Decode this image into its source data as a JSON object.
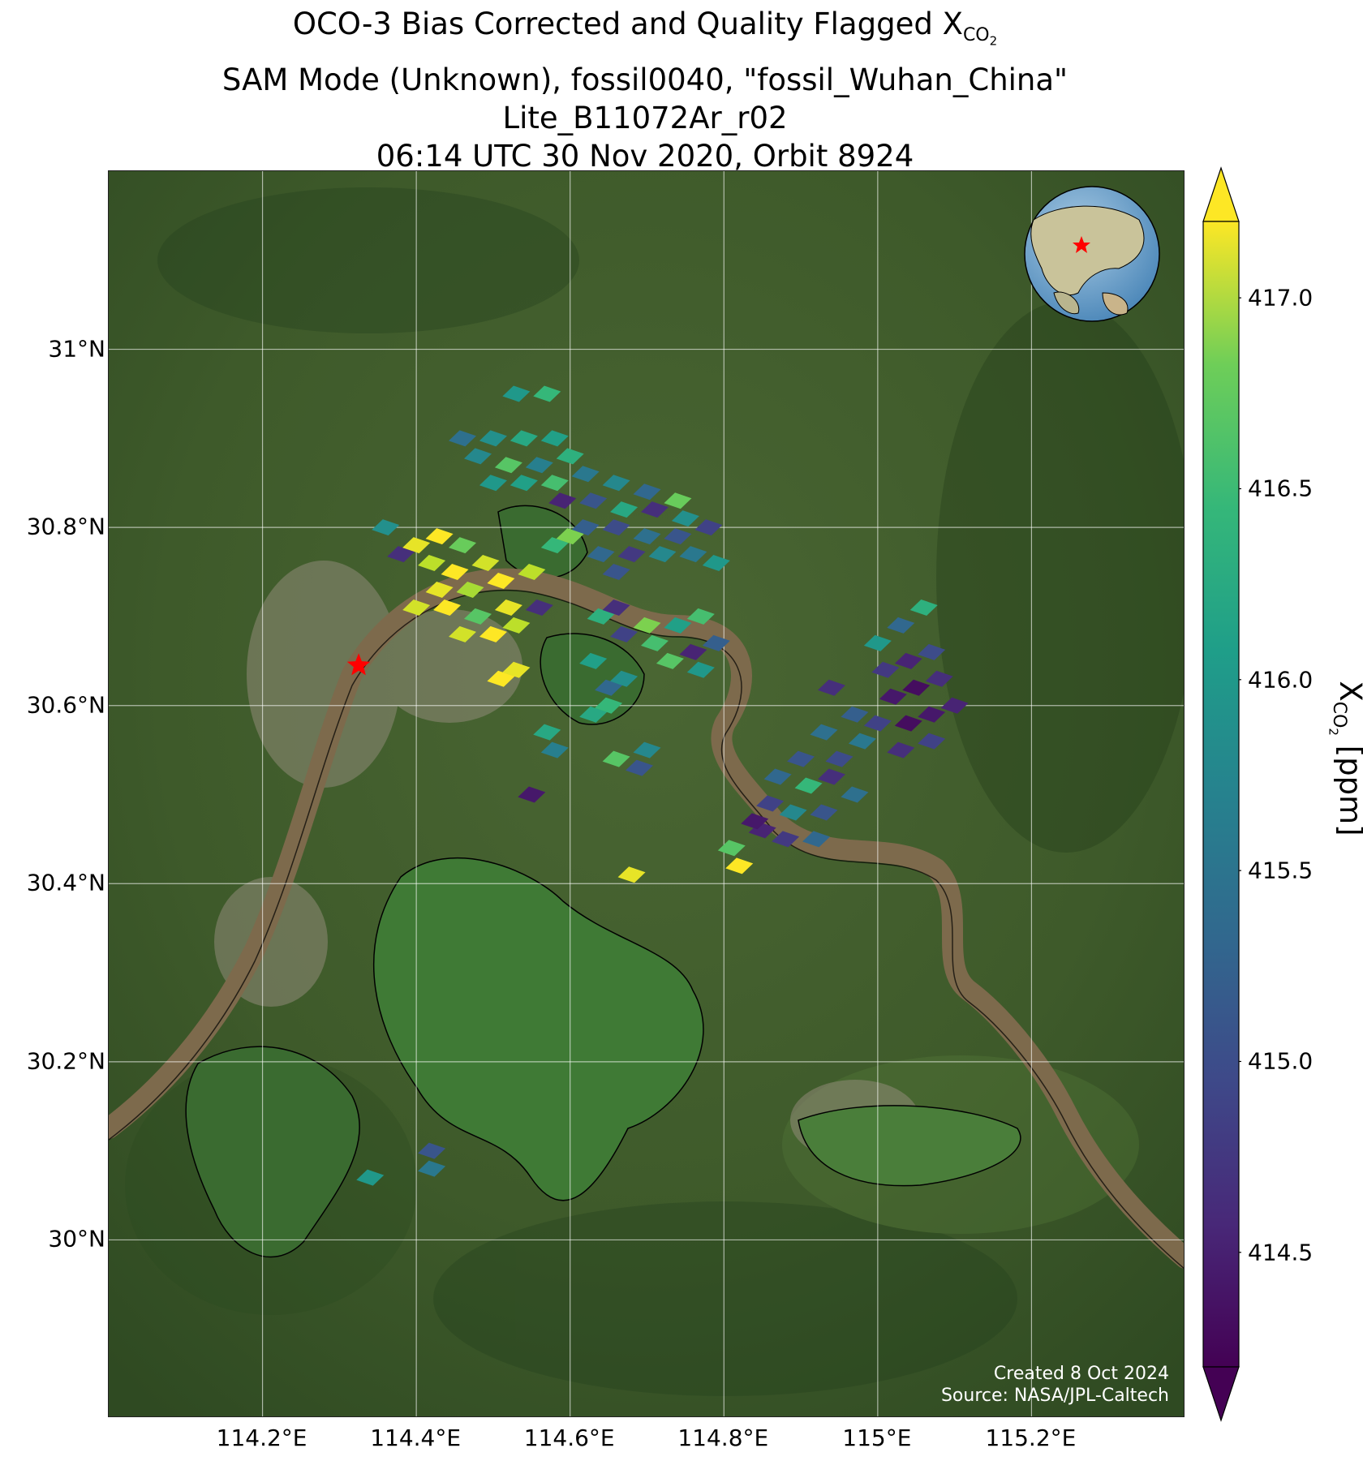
{
  "title": {
    "line1_prefix": "OCO-3 Bias Corrected and Quality Flagged X",
    "line1_sub": "CO",
    "line1_subsub": "2",
    "line2": "SAM Mode (Unknown), fossil0040, \"fossil_Wuhan_China\"",
    "line3": "Lite_B11072Ar_r02",
    "line4": "06:14 UTC 30 Nov 2020, Orbit 8924"
  },
  "map": {
    "lon_range": [
      114.0,
      115.4
    ],
    "lat_range": [
      29.8,
      31.2
    ],
    "lat_ticks": [
      {
        "value": 31.0,
        "label": "31°N"
      },
      {
        "value": 30.8,
        "label": "30.8°N"
      },
      {
        "value": 30.6,
        "label": "30.6°N"
      },
      {
        "value": 30.4,
        "label": "30.4°N"
      },
      {
        "value": 30.2,
        "label": "30.2°N"
      },
      {
        "value": 30.0,
        "label": "30°N"
      }
    ],
    "lon_ticks": [
      {
        "value": 114.2,
        "label": "114.2°E"
      },
      {
        "value": 114.4,
        "label": "114.4°E"
      },
      {
        "value": 114.6,
        "label": "114.6°E"
      },
      {
        "value": 114.8,
        "label": "114.8°E"
      },
      {
        "value": 115.0,
        "label": "115°E"
      },
      {
        "value": 115.2,
        "label": "115.2°E"
      }
    ],
    "target_marker": {
      "lon": 114.325,
      "lat": 30.645,
      "color": "#ff0000"
    },
    "background_colors": {
      "land": "#3e5a2a",
      "river": "#7d6a4c",
      "lake": "#3f7a35"
    },
    "credits": [
      "Created 8 Oct 2024",
      "Source: NASA/JPL-Caltech"
    ]
  },
  "colorbar": {
    "colormap": "viridis",
    "range": [
      414.2,
      417.2
    ],
    "ticks": [
      {
        "value": 417.0,
        "label": "417.0"
      },
      {
        "value": 416.5,
        "label": "416.5"
      },
      {
        "value": 416.0,
        "label": "416.0"
      },
      {
        "value": 415.5,
        "label": "415.5"
      },
      {
        "value": 415.0,
        "label": "415.0"
      },
      {
        "value": 414.5,
        "label": "414.5"
      }
    ],
    "label_prefix": "X",
    "label_sub": "CO",
    "label_subsub": "2",
    "label_suffix": " [ppm]",
    "extend": "both"
  },
  "chart_data": {
    "type": "scatter",
    "xlabel": "",
    "ylabel": "",
    "xlim": [
      114.0,
      115.4
    ],
    "ylim": [
      29.8,
      31.2
    ],
    "series": [
      {
        "points": [
          {
            "lon": 114.53,
            "lat": 30.95,
            "v": 415.8
          },
          {
            "lon": 114.57,
            "lat": 30.95,
            "v": 416.2
          },
          {
            "lon": 114.46,
            "lat": 30.9,
            "v": 415.3
          },
          {
            "lon": 114.5,
            "lat": 30.9,
            "v": 415.7
          },
          {
            "lon": 114.54,
            "lat": 30.9,
            "v": 416.0
          },
          {
            "lon": 114.58,
            "lat": 30.9,
            "v": 415.9
          },
          {
            "lon": 114.48,
            "lat": 30.88,
            "v": 415.6
          },
          {
            "lon": 114.52,
            "lat": 30.87,
            "v": 416.4
          },
          {
            "lon": 114.56,
            "lat": 30.87,
            "v": 415.5
          },
          {
            "lon": 114.6,
            "lat": 30.88,
            "v": 416.1
          },
          {
            "lon": 114.5,
            "lat": 30.85,
            "v": 415.8
          },
          {
            "lon": 114.54,
            "lat": 30.85,
            "v": 415.9
          },
          {
            "lon": 114.58,
            "lat": 30.85,
            "v": 416.3
          },
          {
            "lon": 114.62,
            "lat": 30.86,
            "v": 415.4
          },
          {
            "lon": 114.66,
            "lat": 30.85,
            "v": 415.6
          },
          {
            "lon": 114.7,
            "lat": 30.84,
            "v": 415.2
          },
          {
            "lon": 114.74,
            "lat": 30.83,
            "v": 416.5
          },
          {
            "lon": 114.59,
            "lat": 30.83,
            "v": 414.5
          },
          {
            "lon": 114.63,
            "lat": 30.83,
            "v": 415.0
          },
          {
            "lon": 114.67,
            "lat": 30.82,
            "v": 416.0
          },
          {
            "lon": 114.71,
            "lat": 30.82,
            "v": 414.6
          },
          {
            "lon": 114.75,
            "lat": 30.81,
            "v": 415.7
          },
          {
            "lon": 114.62,
            "lat": 30.8,
            "v": 415.1
          },
          {
            "lon": 114.66,
            "lat": 30.8,
            "v": 414.9
          },
          {
            "lon": 114.7,
            "lat": 30.79,
            "v": 415.3
          },
          {
            "lon": 114.74,
            "lat": 30.79,
            "v": 415.0
          },
          {
            "lon": 114.78,
            "lat": 30.8,
            "v": 414.8
          },
          {
            "lon": 114.64,
            "lat": 30.77,
            "v": 415.2
          },
          {
            "lon": 114.68,
            "lat": 30.77,
            "v": 414.7
          },
          {
            "lon": 114.72,
            "lat": 30.77,
            "v": 415.6
          },
          {
            "lon": 114.76,
            "lat": 30.77,
            "v": 415.4
          },
          {
            "lon": 114.66,
            "lat": 30.75,
            "v": 415.0
          },
          {
            "lon": 114.79,
            "lat": 30.76,
            "v": 415.8
          },
          {
            "lon": 114.36,
            "lat": 30.8,
            "v": 415.7
          },
          {
            "lon": 114.38,
            "lat": 30.77,
            "v": 414.6
          },
          {
            "lon": 114.4,
            "lat": 30.78,
            "v": 417.1
          },
          {
            "lon": 114.43,
            "lat": 30.79,
            "v": 417.2
          },
          {
            "lon": 114.46,
            "lat": 30.78,
            "v": 416.5
          },
          {
            "lon": 114.42,
            "lat": 30.76,
            "v": 416.9
          },
          {
            "lon": 114.45,
            "lat": 30.75,
            "v": 417.2
          },
          {
            "lon": 114.49,
            "lat": 30.76,
            "v": 417.0
          },
          {
            "lon": 114.43,
            "lat": 30.73,
            "v": 417.1
          },
          {
            "lon": 114.47,
            "lat": 30.73,
            "v": 416.8
          },
          {
            "lon": 114.51,
            "lat": 30.74,
            "v": 417.2
          },
          {
            "lon": 114.55,
            "lat": 30.75,
            "v": 416.9
          },
          {
            "lon": 114.4,
            "lat": 30.71,
            "v": 417.0
          },
          {
            "lon": 114.44,
            "lat": 30.71,
            "v": 417.2
          },
          {
            "lon": 114.48,
            "lat": 30.7,
            "v": 416.4
          },
          {
            "lon": 114.52,
            "lat": 30.71,
            "v": 417.1
          },
          {
            "lon": 114.56,
            "lat": 30.71,
            "v": 414.6
          },
          {
            "lon": 114.46,
            "lat": 30.68,
            "v": 417.0
          },
          {
            "lon": 114.5,
            "lat": 30.68,
            "v": 417.2
          },
          {
            "lon": 114.53,
            "lat": 30.69,
            "v": 416.9
          },
          {
            "lon": 114.51,
            "lat": 30.63,
            "v": 417.2
          },
          {
            "lon": 114.53,
            "lat": 30.64,
            "v": 417.1
          },
          {
            "lon": 114.58,
            "lat": 30.78,
            "v": 416.2
          },
          {
            "lon": 114.6,
            "lat": 30.79,
            "v": 416.6
          },
          {
            "lon": 114.57,
            "lat": 30.57,
            "v": 416.0
          },
          {
            "lon": 114.58,
            "lat": 30.55,
            "v": 415.5
          },
          {
            "lon": 114.64,
            "lat": 30.7,
            "v": 416.1
          },
          {
            "lon": 114.66,
            "lat": 30.71,
            "v": 414.6
          },
          {
            "lon": 114.67,
            "lat": 30.68,
            "v": 414.8
          },
          {
            "lon": 114.7,
            "lat": 30.69,
            "v": 416.6
          },
          {
            "lon": 114.71,
            "lat": 30.67,
            "v": 416.3
          },
          {
            "lon": 114.63,
            "lat": 30.65,
            "v": 415.9
          },
          {
            "lon": 114.65,
            "lat": 30.62,
            "v": 415.2
          },
          {
            "lon": 114.67,
            "lat": 30.63,
            "v": 415.7
          },
          {
            "lon": 114.63,
            "lat": 30.59,
            "v": 416.0
          },
          {
            "lon": 114.65,
            "lat": 30.6,
            "v": 416.2
          },
          {
            "lon": 114.74,
            "lat": 30.69,
            "v": 415.9
          },
          {
            "lon": 114.77,
            "lat": 30.7,
            "v": 416.3
          },
          {
            "lon": 114.76,
            "lat": 30.66,
            "v": 414.5
          },
          {
            "lon": 114.79,
            "lat": 30.67,
            "v": 415.1
          },
          {
            "lon": 114.73,
            "lat": 30.65,
            "v": 416.4
          },
          {
            "lon": 114.77,
            "lat": 30.64,
            "v": 415.8
          },
          {
            "lon": 114.66,
            "lat": 30.54,
            "v": 416.4
          },
          {
            "lon": 114.7,
            "lat": 30.55,
            "v": 415.6
          },
          {
            "lon": 114.69,
            "lat": 30.53,
            "v": 415.0
          },
          {
            "lon": 114.55,
            "lat": 30.5,
            "v": 414.4
          },
          {
            "lon": 114.68,
            "lat": 30.41,
            "v": 417.1
          },
          {
            "lon": 114.81,
            "lat": 30.44,
            "v": 416.4
          },
          {
            "lon": 114.82,
            "lat": 30.42,
            "v": 417.2
          },
          {
            "lon": 114.34,
            "lat": 30.07,
            "v": 415.8
          },
          {
            "lon": 114.42,
            "lat": 30.08,
            "v": 415.4
          },
          {
            "lon": 114.42,
            "lat": 30.1,
            "v": 415.0
          },
          {
            "lon": 114.94,
            "lat": 30.62,
            "v": 414.6
          },
          {
            "lon": 115.0,
            "lat": 30.67,
            "v": 415.8
          },
          {
            "lon": 115.03,
            "lat": 30.69,
            "v": 415.2
          },
          {
            "lon": 115.06,
            "lat": 30.71,
            "v": 416.1
          },
          {
            "lon": 115.01,
            "lat": 30.64,
            "v": 414.7
          },
          {
            "lon": 115.04,
            "lat": 30.65,
            "v": 414.5
          },
          {
            "lon": 115.07,
            "lat": 30.66,
            "v": 414.9
          },
          {
            "lon": 115.02,
            "lat": 30.61,
            "v": 414.4
          },
          {
            "lon": 115.05,
            "lat": 30.62,
            "v": 414.3
          },
          {
            "lon": 115.08,
            "lat": 30.63,
            "v": 414.6
          },
          {
            "lon": 115.04,
            "lat": 30.58,
            "v": 414.3
          },
          {
            "lon": 115.07,
            "lat": 30.59,
            "v": 414.4
          },
          {
            "lon": 115.1,
            "lat": 30.6,
            "v": 414.5
          },
          {
            "lon": 114.97,
            "lat": 30.59,
            "v": 415.1
          },
          {
            "lon": 115.0,
            "lat": 30.58,
            "v": 414.8
          },
          {
            "lon": 114.98,
            "lat": 30.56,
            "v": 415.4
          },
          {
            "lon": 115.03,
            "lat": 30.55,
            "v": 414.6
          },
          {
            "lon": 115.07,
            "lat": 30.56,
            "v": 414.8
          },
          {
            "lon": 114.93,
            "lat": 30.57,
            "v": 415.3
          },
          {
            "lon": 114.95,
            "lat": 30.54,
            "v": 414.9
          },
          {
            "lon": 114.9,
            "lat": 30.54,
            "v": 415.0
          },
          {
            "lon": 114.87,
            "lat": 30.52,
            "v": 415.2
          },
          {
            "lon": 114.91,
            "lat": 30.51,
            "v": 416.2
          },
          {
            "lon": 114.94,
            "lat": 30.52,
            "v": 414.6
          },
          {
            "lon": 114.86,
            "lat": 30.49,
            "v": 414.8
          },
          {
            "lon": 114.89,
            "lat": 30.48,
            "v": 415.6
          },
          {
            "lon": 114.93,
            "lat": 30.48,
            "v": 415.0
          },
          {
            "lon": 114.97,
            "lat": 30.5,
            "v": 415.3
          },
          {
            "lon": 114.85,
            "lat": 30.46,
            "v": 414.5
          },
          {
            "lon": 114.88,
            "lat": 30.45,
            "v": 414.7
          },
          {
            "lon": 114.92,
            "lat": 30.45,
            "v": 415.2
          },
          {
            "lon": 114.84,
            "lat": 30.47,
            "v": 414.4
          }
        ]
      }
    ]
  }
}
